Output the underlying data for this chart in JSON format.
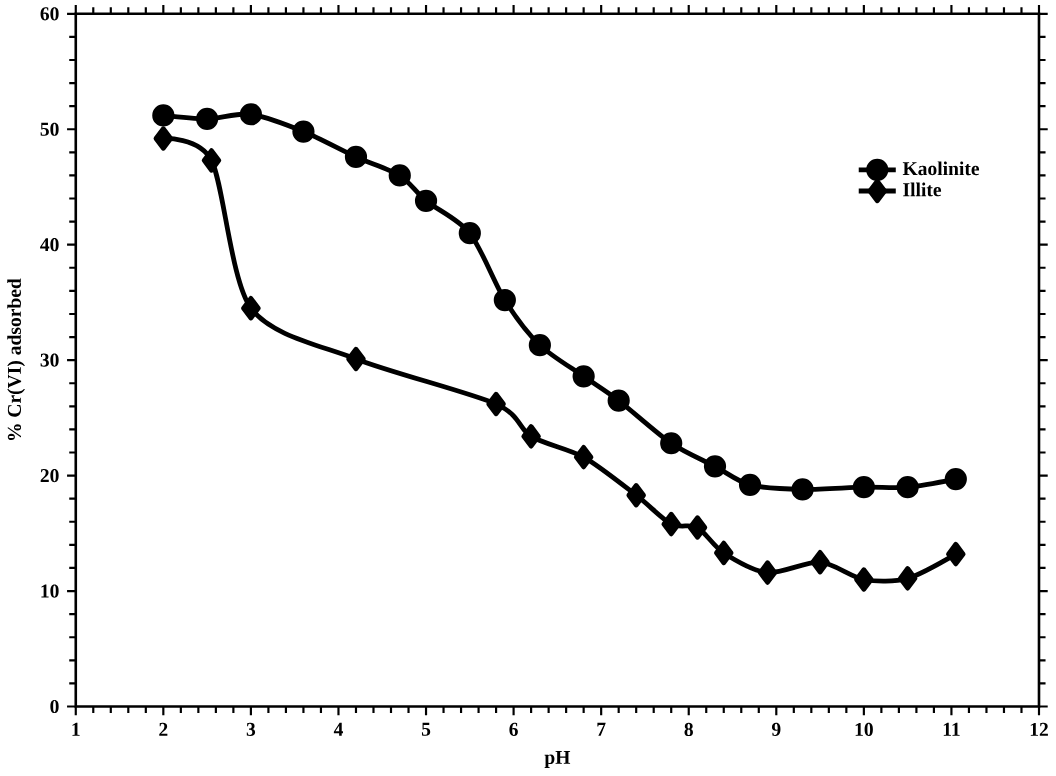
{
  "chart_data": {
    "type": "line",
    "xlabel": "pH",
    "ylabel": "% Cr(VI) adsorbed",
    "xlim": [
      1,
      12
    ],
    "xticks": [
      1,
      2,
      3,
      4,
      5,
      6,
      7,
      8,
      9,
      10,
      11,
      12
    ],
    "ylim": [
      0,
      60
    ],
    "yticks": [
      0,
      10,
      20,
      30,
      40,
      50,
      60
    ],
    "legend": "top right",
    "grid": false,
    "series": [
      {
        "name": "Kaolinite",
        "color": "#000000",
        "marker": "circle",
        "x": [
          2.0,
          2.5,
          3.0,
          3.6,
          4.2,
          4.7,
          5.0,
          5.5,
          5.9,
          6.3,
          6.8,
          7.2,
          7.8,
          8.3,
          8.7,
          9.3,
          10.0,
          10.5,
          11.05
        ],
        "values": [
          51.2,
          50.9,
          51.3,
          49.8,
          47.6,
          46.0,
          43.8,
          41.0,
          35.2,
          31.3,
          28.6,
          26.5,
          22.8,
          20.8,
          19.2,
          18.8,
          19.0,
          19.0,
          19.7
        ]
      },
      {
        "name": "Illite",
        "color": "#000000",
        "marker": "diamond",
        "x": [
          2.0,
          2.55,
          3.0,
          4.2,
          5.8,
          6.2,
          6.8,
          7.4,
          7.8,
          8.1,
          8.4,
          8.9,
          9.5,
          10.0,
          10.5,
          11.05
        ],
        "values": [
          49.2,
          47.3,
          34.5,
          30.1,
          26.2,
          23.4,
          21.6,
          18.3,
          15.8,
          15.5,
          13.3,
          11.6,
          12.5,
          11.0,
          11.1,
          13.2
        ]
      }
    ]
  }
}
